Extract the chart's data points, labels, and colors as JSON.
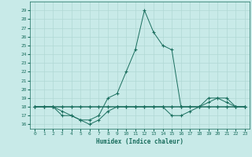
{
  "xlabel": "Humidex (Indice chaleur)",
  "xlim": [
    -0.5,
    23.5
  ],
  "ylim": [
    15.5,
    30
  ],
  "yticks": [
    16,
    17,
    18,
    19,
    20,
    21,
    22,
    23,
    24,
    25,
    26,
    27,
    28,
    29
  ],
  "xticks": [
    0,
    1,
    2,
    3,
    4,
    5,
    6,
    7,
    8,
    9,
    10,
    11,
    12,
    13,
    14,
    15,
    16,
    17,
    18,
    19,
    20,
    21,
    22,
    23
  ],
  "bg_color": "#c8eae8",
  "line_color": "#1a6e5e",
  "grid_color": "#b0d8d4",
  "lines": [
    {
      "x": [
        0,
        1,
        2,
        3,
        4,
        5,
        6,
        7,
        8,
        9,
        10,
        11,
        12,
        13,
        14,
        15,
        16,
        17,
        18,
        19,
        20,
        21,
        22,
        23
      ],
      "y": [
        18,
        18,
        18,
        17,
        17,
        16.5,
        16.5,
        17,
        19,
        19.5,
        22,
        24.5,
        29,
        26.5,
        25,
        24.5,
        18,
        18,
        18,
        18,
        18,
        18,
        18,
        18
      ]
    },
    {
      "x": [
        0,
        1,
        2,
        3,
        4,
        5,
        6,
        7,
        8,
        9,
        10,
        11,
        12,
        13,
        14,
        15,
        16,
        17,
        18,
        19,
        20,
        21,
        22,
        23
      ],
      "y": [
        18,
        18,
        18,
        17.5,
        17,
        16.5,
        16,
        16.5,
        17.5,
        18,
        18,
        18,
        18,
        18,
        18,
        18,
        18,
        18,
        18,
        18,
        18,
        18,
        18,
        18
      ]
    },
    {
      "x": [
        0,
        1,
        2,
        3,
        4,
        5,
        6,
        7,
        8,
        9,
        10,
        11,
        12,
        13,
        14,
        15,
        16,
        17,
        18,
        19,
        20,
        21,
        22,
        23
      ],
      "y": [
        18,
        18,
        18,
        18,
        18,
        18,
        18,
        18,
        18,
        18,
        18,
        18,
        18,
        18,
        18,
        17,
        17,
        17.5,
        18,
        18.5,
        19,
        19,
        18,
        18
      ]
    },
    {
      "x": [
        0,
        1,
        2,
        3,
        4,
        5,
        6,
        7,
        8,
        9,
        10,
        11,
        12,
        13,
        14,
        15,
        16,
        17,
        18,
        19,
        20,
        21,
        22,
        23
      ],
      "y": [
        18,
        18,
        18,
        18,
        18,
        18,
        18,
        18,
        18,
        18,
        18,
        18,
        18,
        18,
        18,
        18,
        18,
        18,
        18,
        19,
        19,
        18.5,
        18,
        18
      ]
    }
  ]
}
